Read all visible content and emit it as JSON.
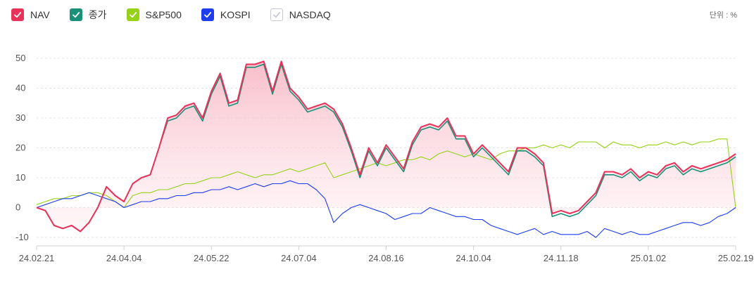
{
  "unit_label": "단위 : %",
  "legend": [
    {
      "label": "NAV",
      "color": "#e8325a",
      "checked": true
    },
    {
      "label": "종가",
      "color": "#1a9078",
      "checked": true
    },
    {
      "label": "S&P500",
      "color": "#96d219",
      "checked": true
    },
    {
      "label": "KOSPI",
      "color": "#1e3cf0",
      "checked": true
    },
    {
      "label": "NASDAQ",
      "color": "#c8c8d2",
      "checked": false
    }
  ],
  "chart_data": {
    "type": "line",
    "title": "",
    "xlabel": "",
    "ylabel": "",
    "ylim": [
      -10,
      50
    ],
    "yticks": [
      -10,
      0,
      10,
      20,
      30,
      40,
      50
    ],
    "x_tick_labels": [
      "24.02.21",
      "24.04.04",
      "24.05.22",
      "24.07.04",
      "24.08.16",
      "24.10.04",
      "24.11.18",
      "25.01.02",
      "25.02.19"
    ],
    "grid": true,
    "area_fill_series": "NAV",
    "series": [
      {
        "name": "NAV",
        "color": "#e8325a",
        "values": [
          0,
          -1,
          -6,
          -7,
          -6,
          -8,
          -5,
          0,
          7,
          4,
          2,
          8,
          10,
          11,
          20,
          30,
          31,
          34,
          35,
          30,
          39,
          45,
          35,
          36,
          48,
          48,
          49,
          39,
          49,
          40,
          37,
          33,
          34,
          35,
          33,
          28,
          20,
          11,
          20,
          15,
          21,
          17,
          13,
          22,
          27,
          28,
          27,
          30,
          24,
          24,
          18,
          21,
          18,
          15,
          12,
          20,
          20,
          18,
          15,
          -2,
          -1,
          -2,
          -1,
          2,
          5,
          12,
          12,
          11,
          13,
          10,
          12,
          11,
          14,
          15,
          12,
          14,
          13,
          14,
          15,
          16,
          18
        ]
      },
      {
        "name": "종가",
        "color": "#1a9078",
        "values": [
          0,
          -1,
          -6,
          -7,
          -6,
          -8,
          -5,
          0,
          7,
          4,
          2,
          8,
          10,
          11,
          20,
          29,
          30,
          33,
          34,
          29,
          38,
          44,
          34,
          35,
          47,
          47,
          48,
          38,
          48,
          39,
          36,
          32,
          33,
          34,
          32,
          27,
          19,
          10,
          19,
          14,
          20,
          16,
          12,
          21,
          26,
          27,
          26,
          29,
          23,
          23,
          17,
          20,
          17,
          14,
          11,
          19,
          19,
          17,
          14,
          -3,
          -2,
          -3,
          -2,
          1,
          4,
          11,
          11,
          10,
          12,
          9,
          11,
          10,
          13,
          14,
          11,
          13,
          12,
          13,
          14,
          15,
          17
        ]
      },
      {
        "name": "S&P500",
        "color": "#96d219",
        "values": [
          1,
          2,
          3,
          3,
          4,
          4,
          5,
          5,
          4,
          2,
          0,
          4,
          5,
          5,
          6,
          6,
          7,
          8,
          8,
          9,
          10,
          10,
          11,
          12,
          11,
          10,
          11,
          11,
          12,
          13,
          12,
          13,
          14,
          15,
          10,
          11,
          12,
          13,
          14,
          15,
          14,
          15,
          16,
          16,
          17,
          16,
          18,
          19,
          18,
          17,
          18,
          17,
          16,
          18,
          19,
          19,
          20,
          20,
          21,
          20,
          21,
          20,
          22,
          22,
          22,
          20,
          22,
          21,
          21,
          20,
          21,
          21,
          22,
          21,
          22,
          21,
          22,
          22,
          23,
          23,
          0
        ]
      },
      {
        "name": "KOSPI",
        "color": "#1e3cf0",
        "values": [
          0,
          1,
          2,
          3,
          3,
          4,
          5,
          4,
          3,
          2,
          0,
          1,
          2,
          2,
          3,
          3,
          4,
          4,
          5,
          5,
          6,
          6,
          7,
          6,
          7,
          8,
          7,
          8,
          8,
          9,
          8,
          8,
          6,
          3,
          -5,
          -2,
          0,
          1,
          0,
          -1,
          -2,
          -4,
          -3,
          -2,
          -2,
          0,
          -1,
          -2,
          -3,
          -3,
          -4,
          -4,
          -6,
          -7,
          -8,
          -9,
          -8,
          -7,
          -9,
          -8,
          -9,
          -9,
          -9,
          -8,
          -10,
          -7,
          -8,
          -9,
          -8,
          -9,
          -9,
          -8,
          -7,
          -6,
          -5,
          -5,
          -6,
          -5,
          -3,
          -2,
          0
        ]
      }
    ]
  }
}
